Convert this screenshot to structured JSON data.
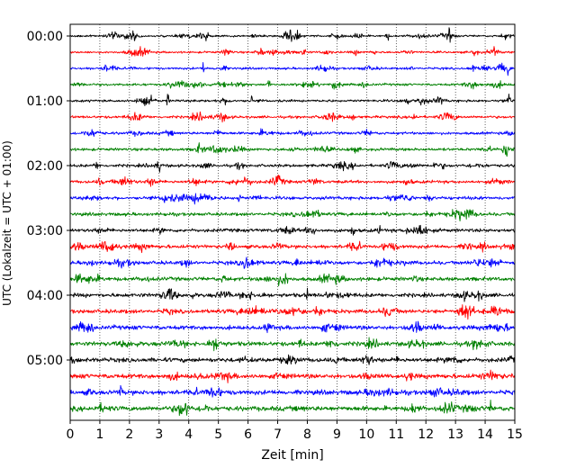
{
  "chart_data": {
    "type": "line",
    "title": "",
    "xlabel": "Zeit  [min]",
    "ylabel": "UTC (Lokalzeit = UTC + 01:00)",
    "xlim": [
      0,
      15
    ],
    "x_ticks": [
      "0",
      "1",
      "2",
      "3",
      "4",
      "5",
      "6",
      "7",
      "8",
      "9",
      "10",
      "11",
      "12",
      "13",
      "14",
      "15"
    ],
    "y_tick_labels": [
      "00:00",
      "01:00",
      "02:00",
      "03:00",
      "04:00",
      "05:00"
    ],
    "y_tick_rows": [
      0,
      4,
      8,
      12,
      16,
      20
    ],
    "rows_per_hour": 4,
    "row_count": 24,
    "trace_colors": [
      "#000000",
      "#ff0000",
      "#0000ff",
      "#008000"
    ],
    "grid": "vertical dotted lines at each minute",
    "legend": "none",
    "notable_spikes": [
      {
        "row": 0,
        "x": 10.7
      },
      {
        "row": 0,
        "x": 12.8
      },
      {
        "row": 1,
        "x": 14.3
      },
      {
        "row": 2,
        "x": 4.5
      },
      {
        "row": 2,
        "x": 14.8
      },
      {
        "row": 3,
        "x": 6.7
      },
      {
        "row": 4,
        "x": 3.3
      },
      {
        "row": 4,
        "x": 6.1
      },
      {
        "row": 4,
        "x": 14.8
      },
      {
        "row": 8,
        "x": 3.0
      },
      {
        "row": 8,
        "x": 12.3
      },
      {
        "row": 10,
        "x": 3.2
      },
      {
        "row": 10,
        "x": 5.7
      },
      {
        "row": 12,
        "x": 11.4
      },
      {
        "row": 16,
        "x": 8.0
      },
      {
        "row": 18,
        "x": 6.6
      },
      {
        "row": 20,
        "x": 9.0
      },
      {
        "row": 22,
        "x": 1.7
      },
      {
        "row": 23,
        "x": 14.2
      }
    ]
  }
}
